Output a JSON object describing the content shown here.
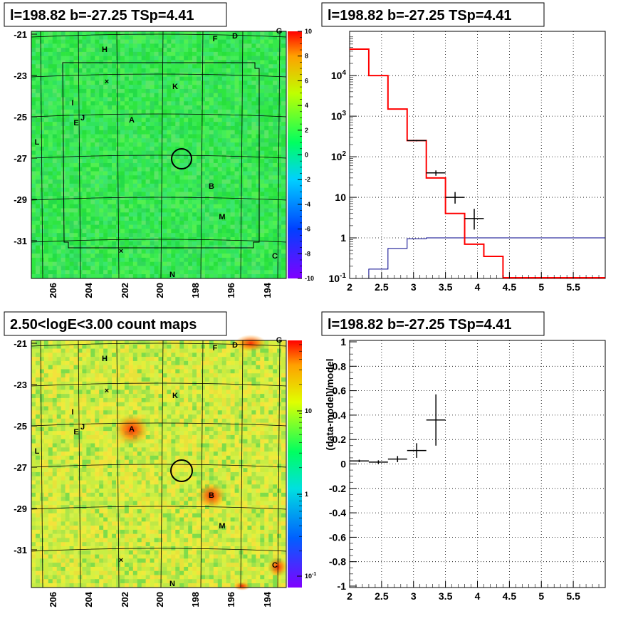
{
  "panels": {
    "tl_title": "l=198.82 b=-27.25 TSp=4.41",
    "tr_title": "l=198.82 b=-27.25 TSp=4.41",
    "bl_title": "2.50<logE<3.00 count maps",
    "br_title": "l=198.82 b=-27.25 TSp=4.41"
  },
  "colors": {
    "model": "#ff0000",
    "background": "#00008b",
    "data": "#000000"
  },
  "chart_data": [
    {
      "type": "heatmap",
      "id": "tsmap",
      "yticks": [
        "-21",
        "-23",
        "-25",
        "-27",
        "-29",
        "-31"
      ],
      "xticks": [
        "206",
        "204",
        "202",
        "200",
        "198",
        "196",
        "194"
      ],
      "zticks": [
        "10",
        "8",
        "6",
        "4",
        "2",
        "0",
        "-2",
        "-4",
        "-6",
        "-8",
        "-10"
      ],
      "zlim": [
        -10,
        10
      ],
      "sources": [
        "G",
        "F",
        "D",
        "H",
        "K",
        "I",
        "J",
        "E",
        "A",
        "L",
        "B",
        "M",
        "C",
        "N"
      ],
      "target": {
        "l": 198.82,
        "b": -27.25
      }
    },
    {
      "type": "line",
      "id": "spectrum",
      "log_y": true,
      "ylim": [
        0.1,
        100000
      ],
      "xlim": [
        2,
        6
      ],
      "xticks": [
        "2",
        "2.5",
        "3",
        "3.5",
        "4",
        "4.5",
        "5",
        "5.5"
      ],
      "yticks": [
        "10^-1",
        "1",
        "10",
        "10^2",
        "10^3",
        "10^4"
      ],
      "model_steps": {
        "edges": [
          2.0,
          2.3,
          2.6,
          2.9,
          3.2,
          3.5,
          3.8,
          4.1,
          4.4,
          6.0
        ],
        "values": [
          45000,
          10000,
          1500,
          250,
          30,
          4,
          0.7,
          0.35,
          0.1
        ]
      },
      "background_steps": {
        "edges": [
          2.3,
          2.6,
          2.9,
          3.2,
          6.0
        ],
        "values": [
          0.17,
          0.55,
          0.95,
          1.0
        ]
      },
      "data_points": [
        {
          "x": 3.05,
          "y": 250,
          "xerr": 0.15,
          "ylo": 240,
          "yhi": 260
        },
        {
          "x": 3.35,
          "y": 40,
          "xerr": 0.15,
          "ylo": 34,
          "yhi": 46
        },
        {
          "x": 3.65,
          "y": 10,
          "xerr": 0.15,
          "ylo": 7,
          "yhi": 13.5
        },
        {
          "x": 3.95,
          "y": 3,
          "xerr": 0.15,
          "ylo": 1.6,
          "yhi": 5.2
        }
      ]
    },
    {
      "type": "heatmap",
      "id": "countmap",
      "yticks": [
        "-21",
        "-23",
        "-25",
        "-27",
        "-29",
        "-31"
      ],
      "xticks": [
        "206",
        "204",
        "202",
        "200",
        "198",
        "196",
        "194"
      ],
      "zticks": [
        "10",
        "1",
        "10^-1"
      ],
      "log_z": true,
      "sources": [
        "G",
        "F",
        "D",
        "H",
        "K",
        "I",
        "J",
        "E",
        "A",
        "L",
        "B",
        "M",
        "C",
        "N"
      ],
      "target": {
        "l": 198.82,
        "b": -27.25
      }
    },
    {
      "type": "scatter",
      "id": "residuals",
      "ylabel": "(data-model)/model",
      "xlim": [
        2,
        6
      ],
      "ylim": [
        -1,
        1
      ],
      "xticks": [
        "2",
        "2.5",
        "3",
        "3.5",
        "4",
        "4.5",
        "5",
        "5.5"
      ],
      "yticks": [
        "1",
        "0.8",
        "0.6",
        "0.4",
        "0.2",
        "0",
        "-0.2",
        "-0.4",
        "-0.6",
        "-0.8",
        "-1"
      ],
      "points": [
        {
          "x": 2.15,
          "y": 0.025,
          "xerr": 0.15,
          "yerr": 0.01
        },
        {
          "x": 2.45,
          "y": 0.015,
          "xerr": 0.15,
          "yerr": 0.015
        },
        {
          "x": 2.75,
          "y": 0.04,
          "xerr": 0.15,
          "yerr": 0.025
        },
        {
          "x": 3.05,
          "y": 0.11,
          "xerr": 0.15,
          "yerr": 0.06
        },
        {
          "x": 3.35,
          "y": 0.36,
          "xerr": 0.15,
          "yerr": 0.21
        }
      ]
    }
  ]
}
